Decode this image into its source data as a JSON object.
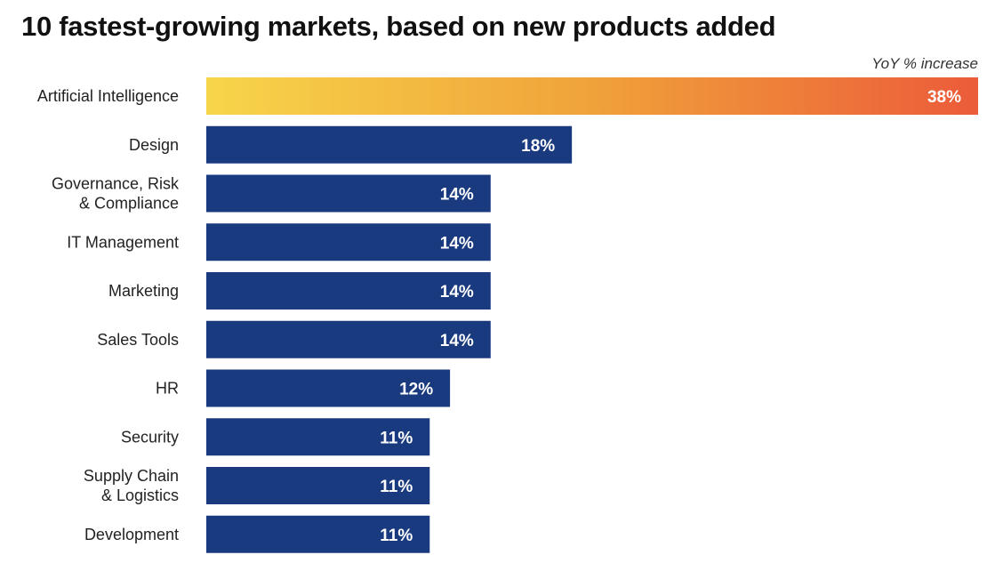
{
  "chart_data": {
    "type": "bar",
    "orientation": "horizontal",
    "title": "10 fastest-growing markets, based on new products added",
    "unit_label": "YoY % increase",
    "categories": [
      "Artificial Intelligence",
      "Design",
      "Governance, Risk\n& Compliance",
      "IT Management",
      "Marketing",
      "Sales Tools",
      "HR",
      "Security",
      "Supply Chain\n& Logistics",
      "Development"
    ],
    "values": [
      38,
      18,
      14,
      14,
      14,
      14,
      12,
      11,
      11,
      11
    ],
    "value_labels": [
      "38%",
      "18%",
      "14%",
      "14%",
      "14%",
      "14%",
      "12%",
      "11%",
      "11%",
      "11%"
    ],
    "xlim": [
      0,
      38
    ],
    "grid": false,
    "colors": {
      "bar": "#1a3a80",
      "highlight_gradient_start": "#f7d54a",
      "highlight_gradient_mid": "#f0a23a",
      "highlight_gradient_end": "#ec5b3a"
    }
  }
}
